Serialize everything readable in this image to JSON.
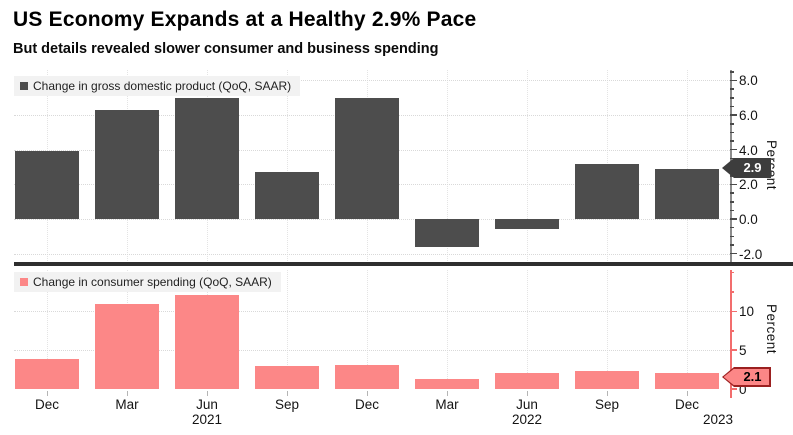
{
  "chart_data": {
    "type": "bar",
    "title": "US Economy Expands at a Healthy 2.9% Pace",
    "subtitle": "But details revealed slower consumer and business spending",
    "categories": [
      "Dec",
      "Mar",
      "Jun",
      "Sep",
      "Dec",
      "Mar",
      "Jun",
      "Sep",
      "Dec"
    ],
    "years": [
      {
        "label": "2021",
        "under_index": 2
      },
      {
        "label": "2022",
        "under_index": 6
      },
      {
        "label": "2023",
        "under_index": 8
      }
    ],
    "grid": true,
    "legend_position": "top-left",
    "background": "#ffffff",
    "panels": [
      {
        "name": "gdp",
        "legend": "Change in gross domestic product (QoQ, SAAR)",
        "values": [
          3.9,
          6.3,
          7.0,
          2.7,
          7.0,
          -1.6,
          -0.6,
          3.2,
          2.9
        ],
        "ylabel": "Percent",
        "ylim": [
          -2.55,
          8.6
        ],
        "yticks": [
          {
            "label": "8.0",
            "value": 8
          },
          {
            "label": "6.0",
            "value": 6
          },
          {
            "label": "4.0",
            "value": 4
          },
          {
            "label": "2.0",
            "value": 2
          },
          {
            "label": "0.0",
            "value": 0
          },
          {
            "label": "-2.0",
            "value": -2
          }
        ],
        "minor_tick_step": 0.5,
        "callout": {
          "label": "2.9",
          "value": 2.9
        },
        "bar_color": "#4d4d4d",
        "axis_color": "#8c8c8c",
        "tick_color": "#4a4a4a",
        "callout_bg": "#3d3d3d",
        "callout_text": "#ffffff"
      },
      {
        "name": "consumer_spending",
        "legend": "Change in consumer spending (QoQ, SAAR)",
        "values": [
          3.9,
          10.9,
          12.1,
          3.0,
          3.1,
          1.3,
          2.0,
          2.3,
          2.1
        ],
        "ylabel": "Percent",
        "ylim": [
          0,
          15.3
        ],
        "yticks": [
          {
            "label": "10",
            "value": 10
          },
          {
            "label": "5",
            "value": 5
          },
          {
            "label": "0",
            "value": 0
          }
        ],
        "minor_tick_step": 2.5,
        "callout": {
          "label": "2.1",
          "value": 2.1
        },
        "bar_color": "#fc8787",
        "axis_color": "#f26d6d",
        "tick_color": "#f26d6d",
        "callout_bg": "#fc8787",
        "callout_border": "#9b2020",
        "callout_text": "#000000"
      }
    ]
  }
}
